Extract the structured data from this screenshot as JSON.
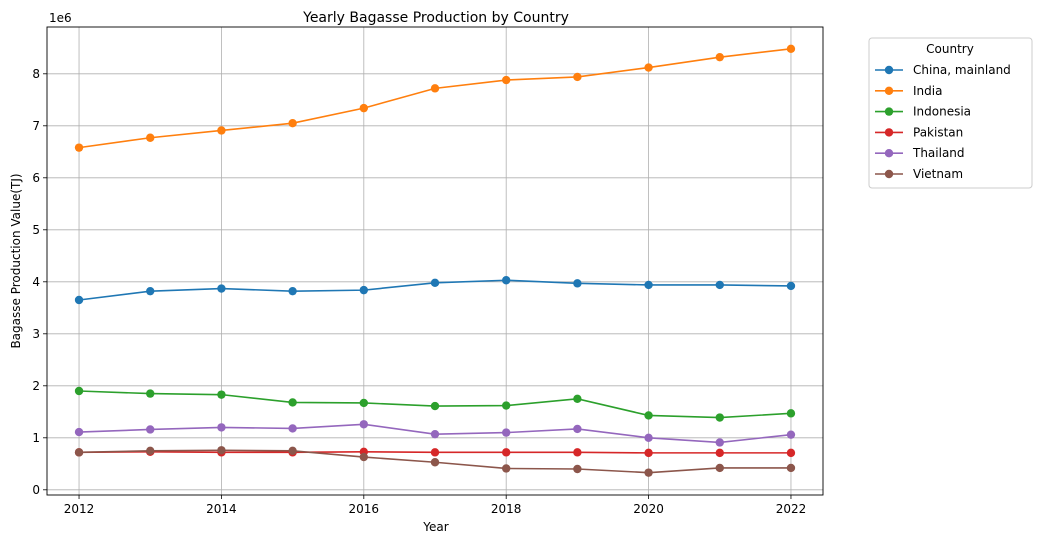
{
  "chart_data": {
    "type": "line",
    "title": "Yearly Bagasse Production by Country",
    "xlabel": "Year",
    "ylabel": "Bagasse Production Value(TJ)",
    "y_scale_label": "1e6",
    "x": [
      2012,
      2013,
      2014,
      2015,
      2016,
      2017,
      2018,
      2019,
      2020,
      2021,
      2022
    ],
    "xlim": [
      2011.55,
      2022.45
    ],
    "ylim": [
      -0.1,
      8.9
    ],
    "y_multiplier": 1000000,
    "x_ticks": [
      2012,
      2014,
      2016,
      2018,
      2020,
      2022
    ],
    "y_ticks": [
      0,
      1,
      2,
      3,
      4,
      5,
      6,
      7,
      8
    ],
    "grid": true,
    "legend": {
      "title": "Country",
      "placement": "outside-right"
    },
    "series": [
      {
        "name": "China, mainland",
        "color": "#1f77b4",
        "values": [
          3.65,
          3.82,
          3.87,
          3.82,
          3.84,
          3.98,
          4.03,
          3.97,
          3.94,
          3.94,
          3.92
        ]
      },
      {
        "name": "India",
        "color": "#ff7f0e",
        "values": [
          6.58,
          6.77,
          6.91,
          7.05,
          7.34,
          7.72,
          7.88,
          7.94,
          8.12,
          8.32,
          8.48
        ]
      },
      {
        "name": "Indonesia",
        "color": "#2ca02c",
        "values": [
          1.9,
          1.85,
          1.83,
          1.68,
          1.67,
          1.61,
          1.62,
          1.75,
          1.43,
          1.39,
          1.47
        ]
      },
      {
        "name": "Pakistan",
        "color": "#d62728",
        "values": [
          0.72,
          0.73,
          0.72,
          0.72,
          0.73,
          0.72,
          0.72,
          0.72,
          0.71,
          0.71,
          0.71
        ]
      },
      {
        "name": "Thailand",
        "color": "#9467bd",
        "values": [
          1.11,
          1.16,
          1.2,
          1.18,
          1.26,
          1.07,
          1.1,
          1.17,
          1.0,
          0.91,
          1.06
        ]
      },
      {
        "name": "Vietnam",
        "color": "#8c564b",
        "values": [
          0.72,
          0.75,
          0.76,
          0.75,
          0.63,
          0.53,
          0.41,
          0.4,
          0.33,
          0.42,
          0.42
        ]
      }
    ]
  }
}
